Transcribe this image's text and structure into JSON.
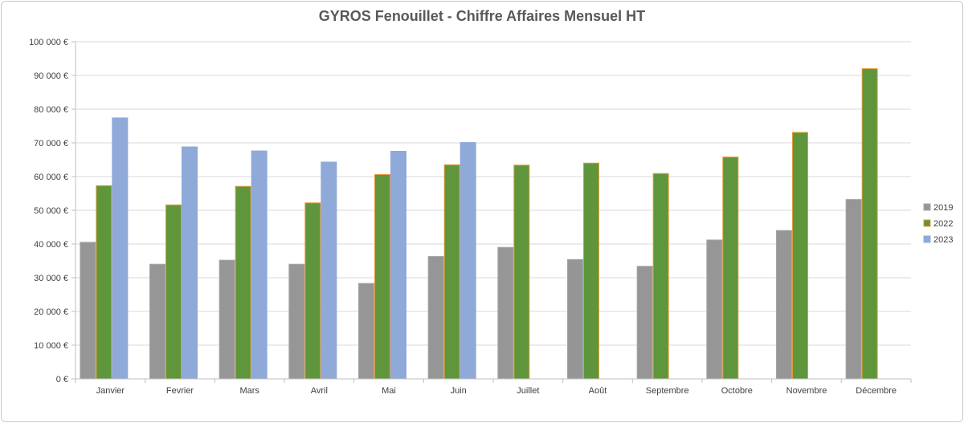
{
  "chart_data": {
    "type": "bar",
    "title": "GYROS Fenouillet - Chiffre Affaires Mensuel HT",
    "xlabel": "",
    "ylabel": "",
    "ylim": [
      0,
      100000
    ],
    "ytick_step": 10000,
    "ytick_labels": [
      "0 €",
      "10 000 €",
      "20 000 €",
      "30 000 €",
      "40 000 €",
      "50 000 €",
      "60 000 €",
      "70 000 €",
      "80 000 €",
      "90 000 €",
      "100 000 €"
    ],
    "grid": true,
    "legend_position": "right",
    "categories": [
      "Janvier",
      "Fevrier",
      "Mars",
      "Avril",
      "Mai",
      "Juin",
      "Juillet",
      "Août",
      "Septembre",
      "Octobre",
      "Novembre",
      "Décembre"
    ],
    "series": [
      {
        "name": "2019",
        "color": "#969696",
        "edge": "#a6a6a6",
        "values": [
          40500,
          34000,
          35200,
          34000,
          28300,
          36300,
          39000,
          35400,
          33400,
          41200,
          44000,
          53200
        ]
      },
      {
        "name": "2022",
        "color": "#5f963c",
        "edge": "#e29a3a",
        "values": [
          57300,
          51600,
          57100,
          52200,
          60600,
          63500,
          63400,
          64000,
          60900,
          65800,
          73100,
          92000
        ]
      },
      {
        "name": "2023",
        "color": "#8fa9d8",
        "edge": "#8fa9d8",
        "values": [
          77400,
          68800,
          67600,
          64300,
          67500,
          70100,
          null,
          null,
          null,
          null,
          null,
          null
        ]
      }
    ]
  }
}
